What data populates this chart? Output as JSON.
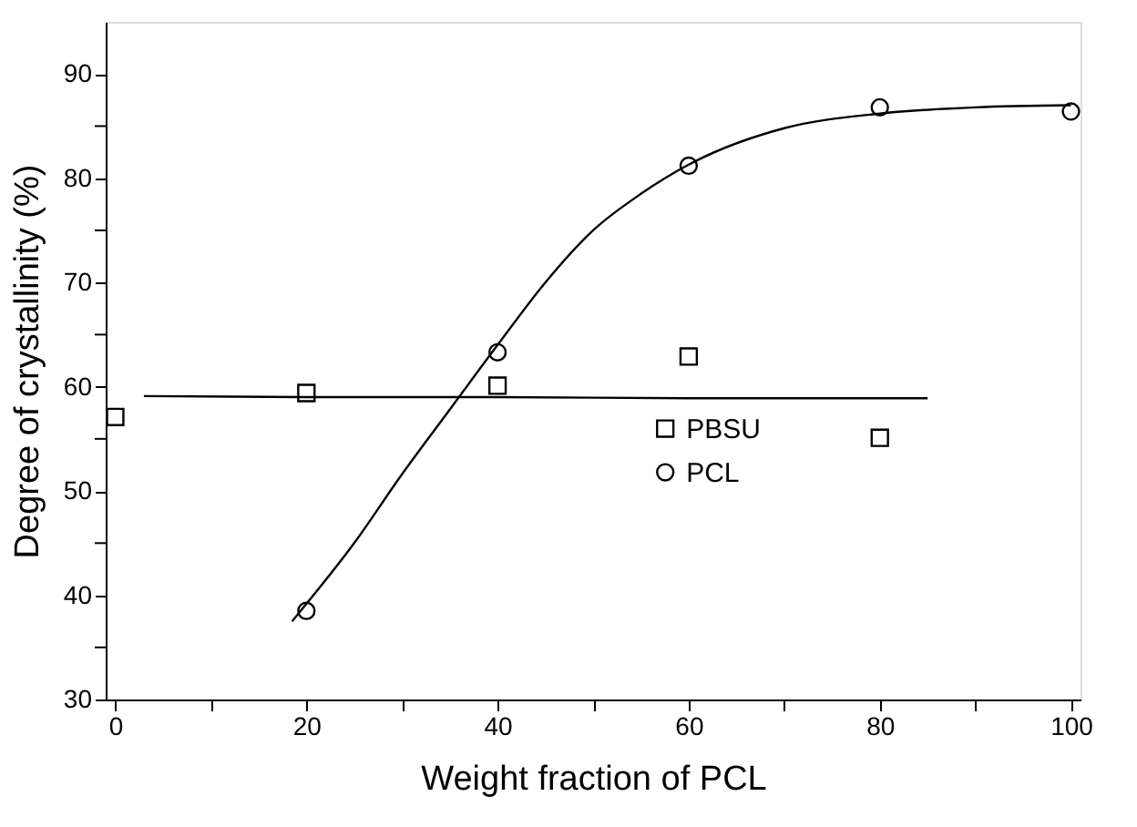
{
  "chart_data": {
    "type": "scatter",
    "xlabel": "Weight fraction of PCL",
    "ylabel": "Degree of crystallinity (%)",
    "xlim": [
      -1,
      101
    ],
    "ylim": [
      30,
      95
    ],
    "xticks": [
      0,
      {
        "value": 10,
        "label": null
      },
      20,
      {
        "value": 30,
        "label": null
      },
      40,
      {
        "value": 50,
        "label": null
      },
      60,
      {
        "value": 70,
        "label": null
      },
      80,
      {
        "value": 90,
        "label": null
      },
      100
    ],
    "yticks": [
      30,
      {
        "value": 35,
        "label": null
      },
      40,
      {
        "value": 45,
        "label": null
      },
      50,
      {
        "value": 55,
        "label": null
      },
      60,
      {
        "value": 65,
        "label": null
      },
      70,
      {
        "value": 75,
        "label": null
      },
      80,
      {
        "value": 85,
        "label": null
      },
      90
    ],
    "grid": false,
    "legend": "bottom right",
    "series": [
      {
        "name": "PBSU",
        "marker": "square",
        "color": "#000000",
        "x": [
          0,
          20,
          40,
          60,
          80
        ],
        "values": [
          57.1,
          59.4,
          60.1,
          62.9,
          55.1
        ]
      },
      {
        "name": "PCL",
        "marker": "circle",
        "color": "#000000",
        "x": [
          20,
          40,
          60,
          80,
          100
        ],
        "values": [
          38.5,
          63.3,
          81.2,
          86.8,
          86.4
        ]
      },
      {
        "type": "line",
        "marker": "none",
        "line_style": "solid",
        "color": "#000000",
        "x": [
          3,
          20,
          40,
          60,
          85
        ],
        "values": [
          59.1,
          59.0,
          59.0,
          58.9,
          58.9
        ]
      },
      {
        "type": "line",
        "marker": "none",
        "line_style": "solid",
        "color": "#000000",
        "x": [
          18.5,
          25,
          30,
          35,
          40,
          45,
          50,
          55,
          60,
          70,
          80,
          90,
          100
        ],
        "values": [
          37.5,
          45,
          51.6,
          57.8,
          64,
          70,
          75,
          78.5,
          81.3,
          84.8,
          86.2,
          86.8,
          87.0
        ]
      }
    ]
  }
}
